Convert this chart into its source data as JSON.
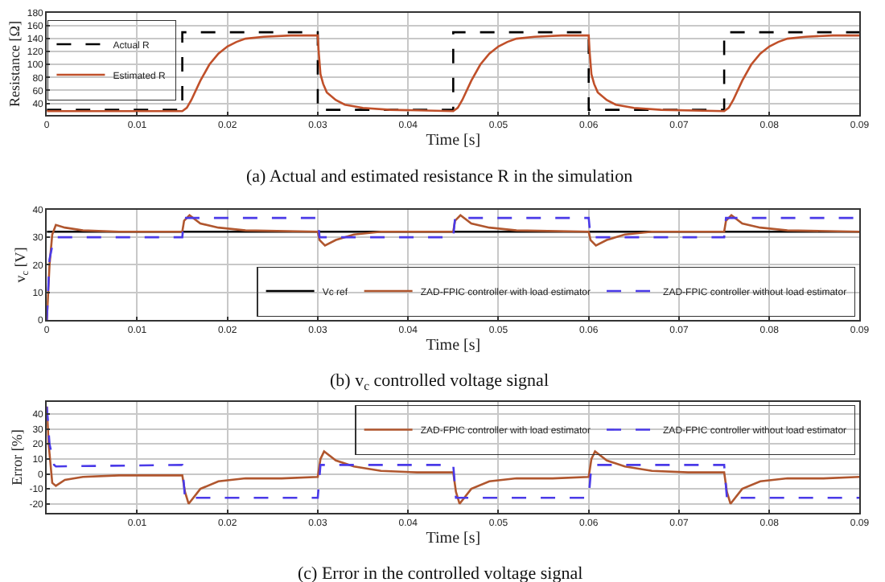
{
  "chart_data": [
    {
      "type": "line",
      "title": "(a) Actual and estimated resistance R in the simulation",
      "xlabel": "Time [s]",
      "ylabel": "Resistance [Ω]",
      "xlim": [
        0,
        0.09
      ],
      "xticks": [
        0,
        0.01,
        0.02,
        0.03,
        0.04,
        0.05,
        0.06,
        0.07,
        0.08,
        0.09
      ],
      "ylim": [
        22,
        180
      ],
      "yticks": [
        40,
        60,
        80,
        100,
        120,
        140,
        160,
        180
      ],
      "grid": true,
      "legend": "top left",
      "marker": "none",
      "series": [
        {
          "name": "Actual R",
          "color": "#000000",
          "line_style": "dashed",
          "x": [
            0,
            0.015,
            0.015,
            0.03,
            0.03,
            0.045,
            0.045,
            0.06,
            0.06,
            0.075,
            0.075,
            0.09
          ],
          "values": [
            30,
            30,
            150,
            150,
            30,
            30,
            150,
            150,
            30,
            30,
            150,
            150
          ]
        },
        {
          "name": "Estimated R",
          "color": "#c0502a",
          "line_style": "solid",
          "x": [
            0,
            0.015,
            0.0155,
            0.016,
            0.017,
            0.018,
            0.019,
            0.02,
            0.021,
            0.022,
            0.024,
            0.027,
            0.03,
            0.0301,
            0.0303,
            0.0306,
            0.031,
            0.032,
            0.033,
            0.035,
            0.038,
            0.045,
            0.0455,
            0.046,
            0.047,
            0.048,
            0.049,
            0.05,
            0.051,
            0.052,
            0.054,
            0.057,
            0.06,
            0.0601,
            0.0603,
            0.0606,
            0.061,
            0.062,
            0.063,
            0.065,
            0.068,
            0.075,
            0.0755,
            0.076,
            0.077,
            0.078,
            0.079,
            0.08,
            0.081,
            0.082,
            0.084,
            0.087,
            0.09
          ],
          "values": [
            28,
            28,
            33,
            45,
            75,
            100,
            117,
            128,
            135,
            140,
            143,
            145,
            145,
            120,
            85,
            70,
            57,
            45,
            38,
            33,
            30,
            28,
            33,
            45,
            75,
            100,
            117,
            128,
            135,
            140,
            143,
            145,
            145,
            120,
            85,
            70,
            57,
            45,
            38,
            33,
            30,
            28,
            33,
            45,
            75,
            100,
            117,
            128,
            135,
            140,
            143,
            145,
            145
          ]
        }
      ]
    },
    {
      "type": "line",
      "title": "(b) v$_{c}$ controlled voltage signal",
      "xlabel": "Time [s]",
      "ylabel": "v$_{c}$ [V]",
      "xlim": [
        0,
        0.09
      ],
      "xticks": [
        0,
        0.01,
        0.02,
        0.03,
        0.04,
        0.05,
        0.06,
        0.07,
        0.08,
        0.09
      ],
      "ylim": [
        0,
        40
      ],
      "yticks": [
        0,
        10,
        20,
        30,
        40
      ],
      "grid": true,
      "legend": "bottom right",
      "marker": "none",
      "series": [
        {
          "name": "Vc ref",
          "color": "#000000",
          "line_style": "solid",
          "x": [
            0,
            0.09
          ],
          "values": [
            32,
            32
          ]
        },
        {
          "name": "ZAD-FPIC controller with load estimator",
          "color": "#b0562e",
          "line_style": "solid",
          "x": [
            0,
            0.0003,
            0.0006,
            0.001,
            0.002,
            0.004,
            0.008,
            0.015,
            0.0152,
            0.0158,
            0.017,
            0.019,
            0.022,
            0.03,
            0.0302,
            0.0308,
            0.032,
            0.034,
            0.037,
            0.045,
            0.0452,
            0.0458,
            0.047,
            0.049,
            0.052,
            0.06,
            0.0602,
            0.0608,
            0.062,
            0.064,
            0.067,
            0.075,
            0.0752,
            0.0758,
            0.077,
            0.079,
            0.082,
            0.09
          ],
          "values": [
            0,
            20,
            31,
            34.5,
            33.5,
            32.5,
            32,
            32,
            36,
            38,
            35,
            33.5,
            32.5,
            32,
            29,
            27,
            29,
            31,
            32,
            32,
            36,
            38,
            35,
            33.5,
            32.5,
            32,
            29,
            27,
            29,
            31,
            32,
            32,
            36,
            38,
            35,
            33.5,
            32.5,
            32
          ]
        },
        {
          "name": "ZAD-FPIC controller without load estimator",
          "color": "#4a3ae8",
          "line_style": "dashed",
          "x": [
            0,
            0.0003,
            0.0008,
            0.015,
            0.0152,
            0.03,
            0.0302,
            0.045,
            0.0452,
            0.06,
            0.0602,
            0.075,
            0.0752,
            0.09
          ],
          "values": [
            0,
            22,
            30,
            30,
            37,
            37,
            30,
            30,
            37,
            37,
            30,
            30,
            37,
            37
          ]
        }
      ]
    },
    {
      "type": "line",
      "title": "(c) Error in the controlled voltage signal",
      "xlabel": "Time [s]",
      "ylabel": "Error [%]",
      "xlim": [
        0,
        0.09
      ],
      "xticks": [
        0.01,
        0.02,
        0.03,
        0.04,
        0.05,
        0.06,
        0.07,
        0.08,
        0.09
      ],
      "ylim": [
        -26,
        48
      ],
      "yticks": [
        -20,
        -10,
        0,
        10,
        20,
        30,
        40
      ],
      "grid": true,
      "legend": "top right",
      "marker": "none",
      "series": [
        {
          "name": "ZAD-FPIC controller with load estimator",
          "color": "#b0562e",
          "line_style": "solid",
          "x": [
            0,
            0.0002,
            0.0006,
            0.001,
            0.002,
            0.004,
            0.008,
            0.015,
            0.0153,
            0.0157,
            0.017,
            0.019,
            0.022,
            0.026,
            0.03,
            0.0303,
            0.0307,
            0.032,
            0.034,
            0.037,
            0.041,
            0.045,
            0.0453,
            0.0457,
            0.047,
            0.049,
            0.052,
            0.056,
            0.06,
            0.0603,
            0.0607,
            0.062,
            0.064,
            0.067,
            0.071,
            0.075,
            0.0753,
            0.0757,
            0.077,
            0.079,
            0.082,
            0.086,
            0.09
          ],
          "values": [
            45,
            20,
            -6,
            -8,
            -4,
            -2,
            -1,
            -1,
            -12,
            -20,
            -10,
            -5,
            -3,
            -3,
            -2,
            10,
            15,
            9,
            5,
            2,
            1,
            1,
            -12,
            -20,
            -10,
            -5,
            -3,
            -3,
            -2,
            10,
            15,
            9,
            5,
            2,
            1,
            1,
            -12,
            -20,
            -10,
            -5,
            -3,
            -3,
            -2
          ]
        },
        {
          "name": "ZAD-FPIC controller without load estimator",
          "color": "#4a3ae8",
          "line_style": "dashed",
          "x": [
            0,
            0.0003,
            0.0008,
            0.001,
            0.015,
            0.0153,
            0.03,
            0.0303,
            0.045,
            0.0453,
            0.06,
            0.0603,
            0.075,
            0.0753,
            0.09
          ],
          "values": [
            45,
            20,
            6,
            5,
            6,
            -16,
            -16,
            6,
            6,
            -16,
            -16,
            6,
            6,
            -16,
            -16
          ]
        }
      ]
    }
  ]
}
